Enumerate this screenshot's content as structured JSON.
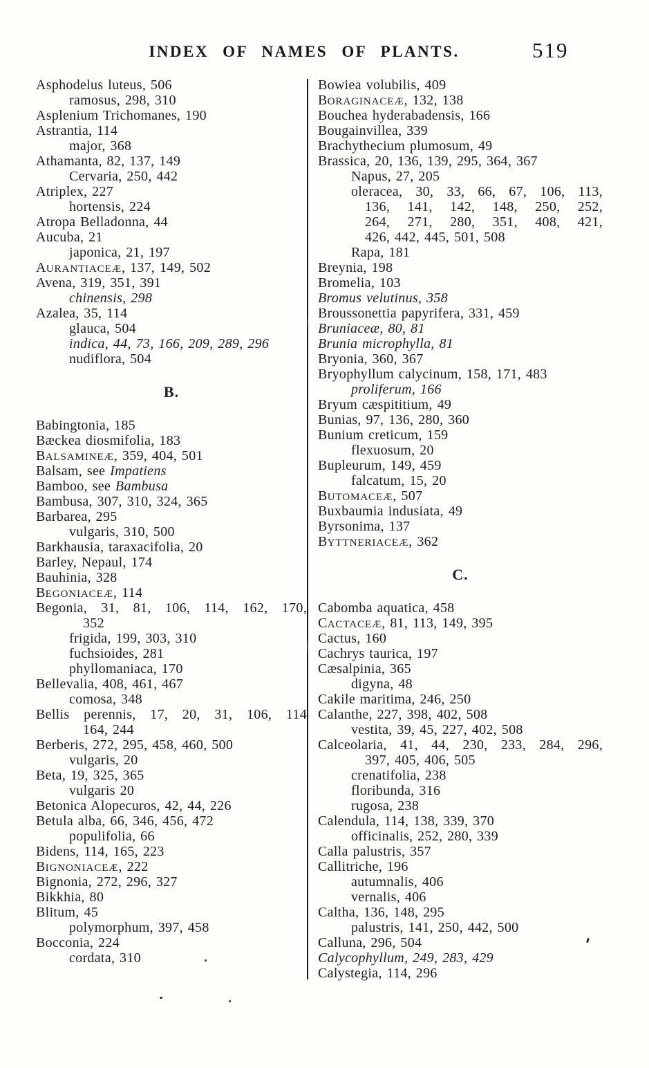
{
  "page": {
    "header": "INDEX OF NAMES OF PLANTS.",
    "page_number": "519"
  },
  "columns": {
    "left": [
      {
        "t": "Asphodelus luteus, 506"
      },
      {
        "t": "ramosus, 298, 310",
        "indent": 1
      },
      {
        "t": "Asplenium Trichomanes, 190"
      },
      {
        "t": "Astrantia, 114"
      },
      {
        "t": "major, 368",
        "indent": 1
      },
      {
        "t": "Athamanta, 82, 137, 149"
      },
      {
        "t": "Cervaria, 250, 442",
        "indent": 1
      },
      {
        "t": "Atriplex, 227"
      },
      {
        "t": "hortensis, 224",
        "indent": 1
      },
      {
        "t": "Atropa Belladonna, 44"
      },
      {
        "t": "Aucuba, 21"
      },
      {
        "t": "japonica, 21, 197",
        "indent": 1
      },
      {
        "parts": [
          {
            "t": "A"
          },
          {
            "t": "URANTIACEÆ",
            "caps": true
          },
          {
            "t": ", 137, 149, 502"
          }
        ]
      },
      {
        "t": "Avena, 319, 351, 391"
      },
      {
        "t": "chinensis, 298",
        "indent": 1,
        "italic": true
      },
      {
        "t": "Azalea, 35, 114"
      },
      {
        "t": "glauca, 504",
        "indent": 1
      },
      {
        "t": "indica, 44, 73, 166, 209, 289, 296",
        "indent": 1,
        "italic": true
      },
      {
        "t": "nudiflora, 504",
        "indent": 1
      },
      {
        "section": "B."
      },
      {
        "t": "Babingtonia, 185"
      },
      {
        "t": "Bæckea diosmifolia, 183"
      },
      {
        "parts": [
          {
            "t": "B"
          },
          {
            "t": "ALSAMINEÆ",
            "caps": true
          },
          {
            "t": ", 359, 404, 501"
          }
        ]
      },
      {
        "parts": [
          {
            "t": "Balsam, see "
          },
          {
            "t": "Impatiens",
            "italic": true
          }
        ]
      },
      {
        "parts": [
          {
            "t": "Bamboo, see "
          },
          {
            "t": "Bambusa",
            "italic": true
          }
        ]
      },
      {
        "t": "Bambusa, 307, 310, 324, 365"
      },
      {
        "t": "Barbarea, 295"
      },
      {
        "t": "vulgaris, 310, 500",
        "indent": 1
      },
      {
        "t": "Barkhausia, taraxacifolia, 20"
      },
      {
        "t": "Barley, Nepaul, 174"
      },
      {
        "t": "Bauhinia, 328"
      },
      {
        "parts": [
          {
            "t": "B"
          },
          {
            "t": "EGONIACEÆ",
            "caps": true
          },
          {
            "t": ", 114"
          }
        ]
      },
      {
        "t": "Begonia, 31, 81, 106, 114, 162, 170,",
        "just": true
      },
      {
        "t": "352",
        "indent": 2
      },
      {
        "t": "frigida, 199, 303, 310",
        "indent": 1
      },
      {
        "t": "fuchsioides, 281",
        "indent": 1
      },
      {
        "t": "phyllomaniaca, 170",
        "indent": 1
      },
      {
        "t": "Bellevalia, 408, 461, 467"
      },
      {
        "t": "comosa, 348",
        "indent": 1
      },
      {
        "t": "Bellis perennis, 17, 20, 31, 106, 114",
        "just": true
      },
      {
        "t": "164, 244",
        "indent": 2
      },
      {
        "t": "Berberis, 272, 295, 458, 460, 500"
      },
      {
        "t": "vulgaris, 20",
        "indent": 1
      },
      {
        "t": "Beta, 19, 325, 365"
      },
      {
        "t": "vulgaris 20",
        "indent": 1
      },
      {
        "t": "Betonica Alopecuros, 42, 44, 226"
      },
      {
        "t": "Betula alba, 66, 346, 456, 472"
      },
      {
        "t": "populifolia, 66",
        "indent": 1
      },
      {
        "t": "Bidens, 114, 165, 223"
      },
      {
        "parts": [
          {
            "t": "B"
          },
          {
            "t": "IGNONIACEÆ",
            "caps": true
          },
          {
            "t": ", 222"
          }
        ]
      },
      {
        "t": "Bignonia, 272, 296, 327"
      },
      {
        "t": "Bikkhia, 80"
      },
      {
        "t": "Blitum, 45"
      },
      {
        "t": "polymorphum, 397, 458",
        "indent": 1
      },
      {
        "t": "Bocconia, 224"
      },
      {
        "t": "cordata, 310",
        "indent": 1
      }
    ],
    "right": [
      {
        "t": "Bowiea volubilis, 409"
      },
      {
        "parts": [
          {
            "t": "B"
          },
          {
            "t": "ORAGINACEÆ",
            "caps": true
          },
          {
            "t": ", 132, 138"
          }
        ]
      },
      {
        "t": "Bouchea hyderabadensis, 166"
      },
      {
        "t": "Bougainvillea, 339"
      },
      {
        "t": "Brachythecium plumosum, 49"
      },
      {
        "t": "Brassica, 20, 136, 139, 295, 364, 367"
      },
      {
        "t": "Napus, 27, 205",
        "indent": 1
      },
      {
        "t": "oleracea, 30, 33, 66, 67, 106, 113,",
        "indent": 1,
        "just": true
      },
      {
        "t": "136, 141, 142, 148, 250, 252,",
        "indent": 2,
        "just": true
      },
      {
        "t": "264, 271, 280, 351, 408, 421,",
        "indent": 2,
        "just": true
      },
      {
        "t": "426, 442, 445, 501, 508",
        "indent": 2
      },
      {
        "t": "Rapa, 181",
        "indent": 1
      },
      {
        "t": "Breynia, 198"
      },
      {
        "t": "Bromelia, 103"
      },
      {
        "t": "Bromus velutinus, 358",
        "italic": true
      },
      {
        "t": "Broussonettia papyrifera, 331, 459"
      },
      {
        "t": "Bruniaceæ, 80, 81",
        "italic": true
      },
      {
        "t": "Brunia microphylla, 81",
        "italic": true
      },
      {
        "t": "Bryonia, 360, 367"
      },
      {
        "t": "Bryophyllum calycinum, 158, 171, 483"
      },
      {
        "t": "proliferum, 166",
        "indent": 1,
        "italic": true
      },
      {
        "t": "Bryum cæspititium, 49"
      },
      {
        "t": "Bunias, 97, 136, 280, 360"
      },
      {
        "t": "Bunium creticum, 159"
      },
      {
        "t": "flexuosum, 20",
        "indent": 1
      },
      {
        "t": "Bupleurum, 149, 459"
      },
      {
        "t": "falcatum, 15, 20",
        "indent": 1
      },
      {
        "parts": [
          {
            "t": "B"
          },
          {
            "t": "UTOMACEÆ",
            "caps": true
          },
          {
            "t": ", 507"
          }
        ]
      },
      {
        "t": "Buxbaumia indusiata, 49"
      },
      {
        "t": "Byrsonima, 137"
      },
      {
        "parts": [
          {
            "t": "B"
          },
          {
            "t": "YTTNERIACEÆ",
            "caps": true
          },
          {
            "t": ", 362"
          }
        ]
      },
      {
        "section": "C."
      },
      {
        "t": "Cabomba aquatica, 458"
      },
      {
        "parts": [
          {
            "t": "C"
          },
          {
            "t": "ACTACEÆ",
            "caps": true
          },
          {
            "t": ", 81, 113, 149, 395"
          }
        ]
      },
      {
        "t": "Cactus, 160"
      },
      {
        "t": "Cachrys taurica, 197"
      },
      {
        "t": "Cæsalpinia, 365"
      },
      {
        "t": "digyna, 48",
        "indent": 1
      },
      {
        "t": "Cakile maritima, 246, 250"
      },
      {
        "t": "Calanthe, 227, 398, 402, 508"
      },
      {
        "t": "vestita, 39, 45, 227, 402, 508",
        "indent": 1
      },
      {
        "t": "Calceolaria, 41, 44, 230, 233, 284, 296,",
        "just": true
      },
      {
        "t": "397, 405, 406, 505",
        "indent": 2
      },
      {
        "t": "crenatifolia, 238",
        "indent": 1
      },
      {
        "t": "floribunda, 316",
        "indent": 1
      },
      {
        "t": "rugosa, 238",
        "indent": 1
      },
      {
        "t": "Calendula, 114, 138, 339, 370"
      },
      {
        "t": "officinalis, 252, 280, 339",
        "indent": 1
      },
      {
        "t": "Calla palustris, 357"
      },
      {
        "t": "Callitriche, 196"
      },
      {
        "t": "autumnalis, 406",
        "indent": 1
      },
      {
        "t": "vernalis, 406",
        "indent": 1
      },
      {
        "t": "Caltha, 136, 148, 295"
      },
      {
        "t": "palustris, 141, 250, 442, 500",
        "indent": 1
      },
      {
        "t": "Calluna, 296, 504"
      },
      {
        "t": "Calycophyllum, 249, 283, 429",
        "italic": true
      },
      {
        "t": "Calystegia, 114, 296"
      }
    ]
  }
}
